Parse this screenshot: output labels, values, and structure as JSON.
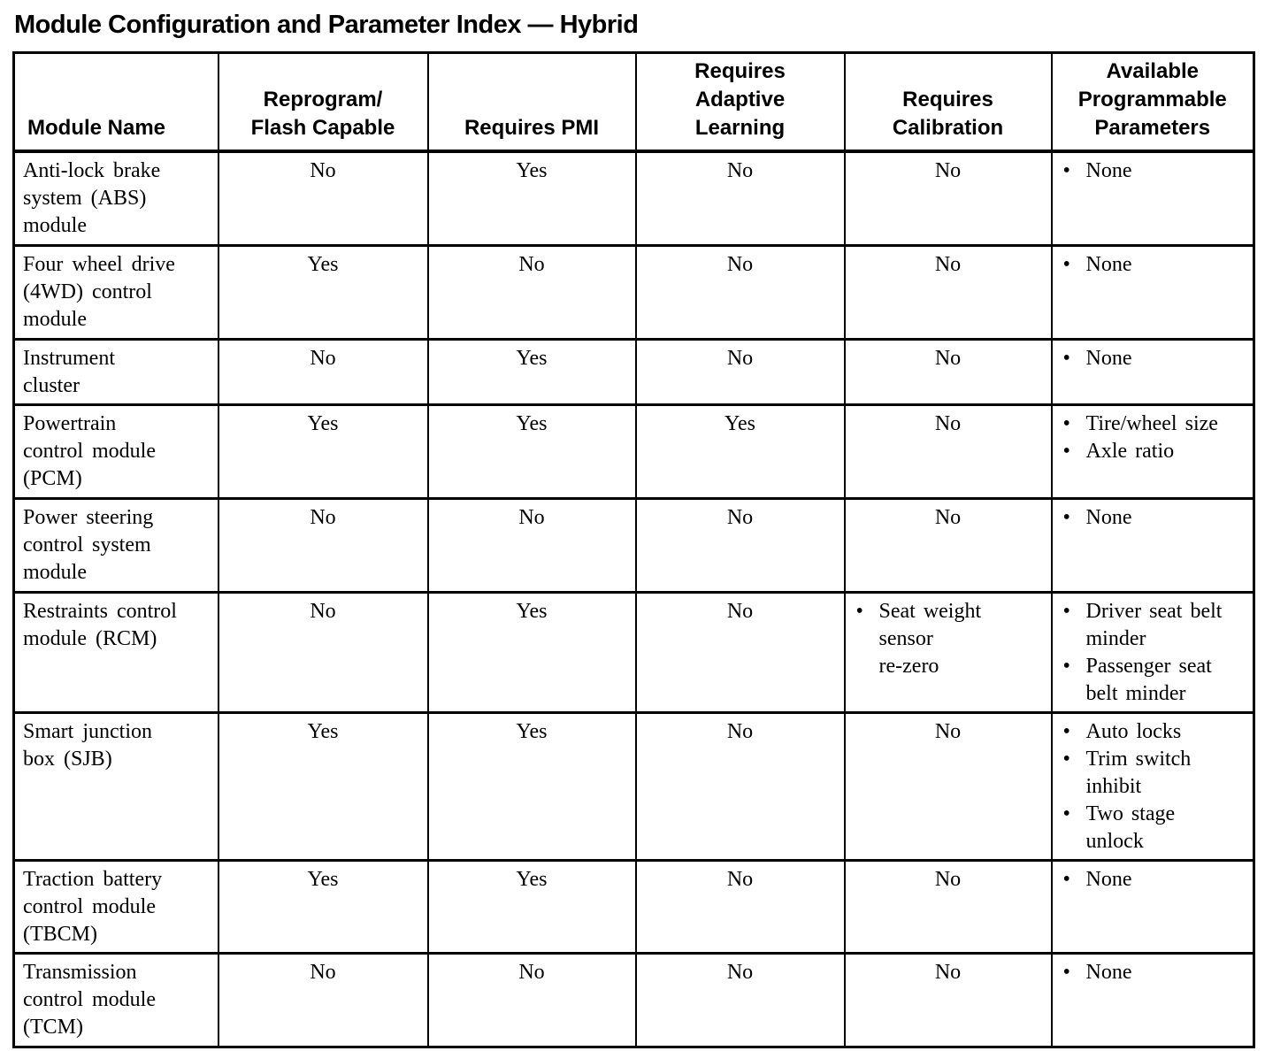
{
  "title": "Module Configuration and Parameter Index — Hybrid",
  "table": {
    "columns": [
      {
        "label": "Module Name"
      },
      {
        "label": "Reprogram/\nFlash Capable"
      },
      {
        "label": "Requires PMI"
      },
      {
        "label": "Requires\nAdaptive\nLearning"
      },
      {
        "label": "Requires\nCalibration"
      },
      {
        "label": "Available\nProgrammable\nParameters"
      }
    ],
    "rows": [
      {
        "module": "Anti-lock brake\nsystem (ABS)\nmodule",
        "reprogram": "No",
        "pmi": "Yes",
        "adaptive": "No",
        "calibration": "No",
        "parameters": [
          "None"
        ]
      },
      {
        "module": "Four wheel drive\n(4WD) control\nmodule",
        "reprogram": "Yes",
        "pmi": "No",
        "adaptive": "No",
        "calibration": "No",
        "parameters": [
          "None"
        ]
      },
      {
        "module": "Instrument\ncluster",
        "reprogram": "No",
        "pmi": "Yes",
        "adaptive": "No",
        "calibration": "No",
        "parameters": [
          "None"
        ]
      },
      {
        "module": "Powertrain\ncontrol module\n(PCM)",
        "reprogram": "Yes",
        "pmi": "Yes",
        "adaptive": "Yes",
        "calibration": "No",
        "parameters": [
          "Tire/wheel size",
          "Axle ratio"
        ]
      },
      {
        "module": "Power steering\ncontrol system\nmodule",
        "reprogram": "No",
        "pmi": "No",
        "adaptive": "No",
        "calibration": "No",
        "parameters": [
          "None"
        ]
      },
      {
        "module": "Restraints control\nmodule (RCM)",
        "reprogram": "No",
        "pmi": "Yes",
        "adaptive": "No",
        "calibration_items": [
          "Seat weight\nsensor\nre-zero"
        ],
        "parameters": [
          "Driver seat belt\nminder",
          "Passenger seat\nbelt minder"
        ]
      },
      {
        "module": "Smart junction\nbox (SJB)",
        "reprogram": "Yes",
        "pmi": "Yes",
        "adaptive": "No",
        "calibration": "No",
        "parameters": [
          "Auto locks",
          "Trim switch\ninhibit",
          "Two stage\nunlock"
        ]
      },
      {
        "module": "Traction battery\ncontrol module\n(TBCM)",
        "reprogram": "Yes",
        "pmi": "Yes",
        "adaptive": "No",
        "calibration": "No",
        "parameters": [
          "None"
        ]
      },
      {
        "module": "Transmission\ncontrol module\n(TCM)",
        "reprogram": "No",
        "pmi": "No",
        "adaptive": "No",
        "calibration": "No",
        "parameters": [
          "None"
        ]
      }
    ]
  }
}
